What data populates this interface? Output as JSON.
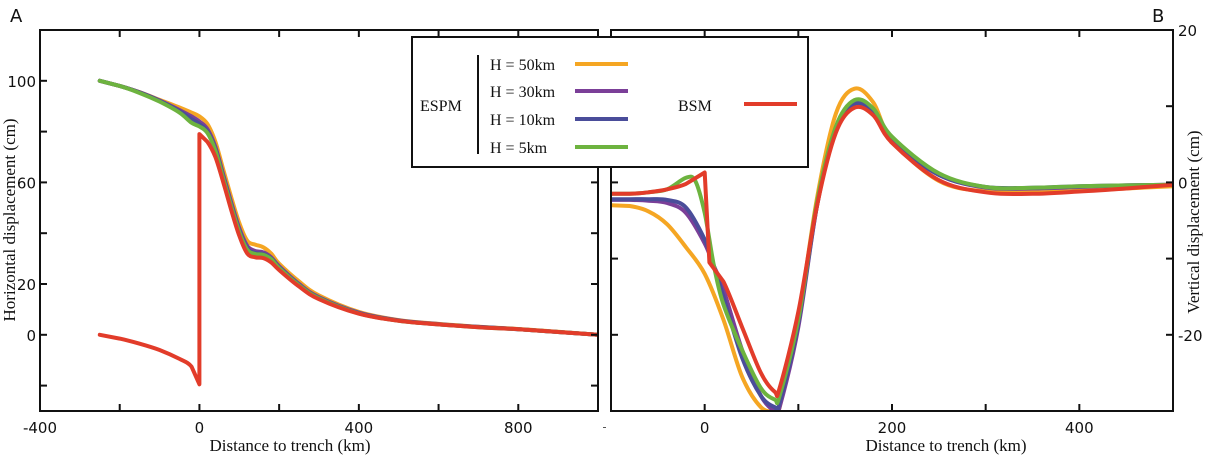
{
  "chart_data": [
    {
      "type": "line",
      "panel_label": "A",
      "xlabel": "Distance to trench (km)",
      "ylabel": "Horizontal displacement (cm)",
      "xlim": [
        -400,
        1000
      ],
      "ylim": [
        -30,
        120
      ],
      "x_ticks": [
        -400,
        -200,
        0,
        200,
        400,
        600,
        800
      ],
      "x_tick_labels": [
        "-400",
        "",
        "0",
        "",
        "400",
        "",
        "800"
      ],
      "y_ticks": [
        -20,
        0,
        20,
        40,
        60,
        80,
        100
      ],
      "y_tick_labels": [
        "",
        "0",
        "20",
        "",
        "60",
        "",
        "100"
      ],
      "y_axis_side": "left",
      "series": [
        {
          "name": "H = 50km",
          "color": "#f5a623",
          "x": [
            -250,
            -200,
            -150,
            -100,
            -50,
            -20,
            0,
            20,
            40,
            60,
            80,
            100,
            120,
            140,
            160,
            180,
            200,
            250,
            300,
            400,
            500,
            600,
            700,
            800,
            900,
            1000
          ],
          "y": [
            100,
            98,
            95.5,
            92.5,
            89.5,
            87.5,
            86,
            83,
            76,
            65,
            54,
            44,
            37,
            35.5,
            34.5,
            32,
            28,
            21,
            15.5,
            9,
            5.8,
            4.3,
            3.2,
            2.3,
            1.2,
            0
          ]
        },
        {
          "name": "H = 30km",
          "color": "#7b3f98",
          "x": [
            -250,
            -200,
            -150,
            -100,
            -50,
            -20,
            0,
            20,
            40,
            60,
            80,
            100,
            120,
            140,
            160,
            180,
            200,
            250,
            300,
            400,
            500,
            600,
            700,
            800,
            900,
            1000
          ],
          "y": [
            100,
            98,
            95.5,
            92.3,
            88.5,
            86,
            84,
            81,
            74,
            63,
            52,
            42,
            35,
            33,
            32.5,
            30.5,
            27,
            20,
            14.8,
            8.7,
            5.7,
            4.2,
            3.1,
            2.2,
            1.1,
            0
          ]
        },
        {
          "name": "H = 10km",
          "color": "#4a4d9a",
          "x": [
            -250,
            -200,
            -150,
            -100,
            -50,
            -20,
            0,
            20,
            40,
            60,
            80,
            100,
            120,
            140,
            160,
            180,
            200,
            250,
            300,
            400,
            500,
            600,
            700,
            800,
            900,
            1000
          ],
          "y": [
            100,
            98,
            95.4,
            92.1,
            88,
            85,
            83,
            80,
            73,
            62,
            51,
            41,
            34,
            32.2,
            31.8,
            30,
            26.5,
            19.6,
            14.5,
            8.5,
            5.6,
            4.1,
            3.1,
            2.2,
            1.1,
            0
          ]
        },
        {
          "name": "H = 5km",
          "color": "#6db33f",
          "x": [
            -250,
            -200,
            -150,
            -100,
            -50,
            -20,
            0,
            20,
            40,
            60,
            80,
            100,
            120,
            140,
            160,
            180,
            200,
            250,
            300,
            400,
            500,
            600,
            700,
            800,
            900,
            1000
          ],
          "y": [
            100,
            98,
            95.2,
            91.8,
            87.5,
            83.5,
            82,
            79.5,
            72.5,
            61.5,
            50.5,
            40.5,
            33.5,
            31.8,
            31.5,
            29.8,
            26.3,
            19.5,
            14.4,
            8.4,
            5.5,
            4.1,
            3.0,
            2.2,
            1.1,
            0
          ]
        },
        {
          "name": "BSM",
          "color": "#e23c2a",
          "x": [
            -250,
            -200,
            -150,
            -100,
            -50,
            -20,
            0,
            0.01,
            20,
            40,
            60,
            80,
            100,
            120,
            140,
            160,
            180,
            200,
            250,
            300,
            400,
            500,
            600,
            700,
            800,
            900,
            1000
          ],
          "y": [
            0,
            -1.5,
            -3.5,
            -6,
            -9.5,
            -12.5,
            -19.5,
            79,
            76,
            70,
            60,
            49,
            39,
            32,
            30.5,
            30.2,
            28.5,
            25.5,
            19,
            14,
            8.3,
            5.5,
            4.1,
            3.0,
            2.2,
            1.1,
            0
          ]
        }
      ]
    },
    {
      "type": "line",
      "panel_label": "B",
      "xlabel": "Distance to trench (km)",
      "ylabel": "Vertical displacement (cm)",
      "xlim": [
        -100,
        500
      ],
      "ylim": [
        -30,
        20
      ],
      "x_ticks": [
        0,
        100,
        200,
        300,
        400
      ],
      "x_tick_labels": [
        "0",
        "",
        "200",
        "",
        "400"
      ],
      "y_ticks": [
        -20,
        -10,
        0,
        10,
        20
      ],
      "y_tick_labels": [
        "-20",
        "",
        "0",
        "",
        "20"
      ],
      "y_axis_side": "right",
      "series": [
        {
          "name": "H = 50km",
          "color": "#f5a623",
          "x": [
            -100,
            -80,
            -60,
            -40,
            -20,
            0,
            20,
            40,
            60,
            75,
            80,
            100,
            120,
            140,
            160,
            180,
            200,
            250,
            300,
            350,
            400,
            450,
            500
          ],
          "y": [
            -3,
            -3.1,
            -3.8,
            -5.5,
            -8.5,
            -12,
            -18,
            -25.5,
            -29.5,
            -30,
            -29.5,
            -18,
            -2,
            9,
            12.3,
            10.5,
            5.5,
            0.2,
            -1.2,
            -1.3,
            -1.1,
            -0.8,
            -0.5
          ]
        },
        {
          "name": "H = 30km",
          "color": "#7b3f98",
          "x": [
            -100,
            -80,
            -60,
            -40,
            -20,
            0,
            10,
            20,
            40,
            60,
            75,
            80,
            100,
            120,
            140,
            160,
            180,
            200,
            250,
            300,
            350,
            400,
            450,
            500
          ],
          "y": [
            -2.3,
            -2.3,
            -2.4,
            -2.7,
            -4,
            -8,
            -11,
            -14,
            -22,
            -28,
            -30,
            -29.5,
            -19,
            -3,
            7,
            10.5,
            9.3,
            5.5,
            1.0,
            -0.7,
            -0.8,
            -0.6,
            -0.4,
            -0.3
          ]
        },
        {
          "name": "H = 10km",
          "color": "#4a4d9a",
          "x": [
            -100,
            -80,
            -60,
            -40,
            -20,
            0,
            10,
            20,
            40,
            60,
            75,
            80,
            100,
            120,
            140,
            160,
            180,
            200,
            250,
            300,
            350,
            400,
            450,
            500
          ],
          "y": [
            -2.2,
            -2.2,
            -2.2,
            -2.3,
            -3.3,
            -7.5,
            -11,
            -15,
            -23,
            -28,
            -29.5,
            -29,
            -18.5,
            -3,
            7,
            10.3,
            9.2,
            5.5,
            1.0,
            -0.6,
            -0.7,
            -0.5,
            -0.4,
            -0.3
          ]
        },
        {
          "name": "H = 5km",
          "color": "#6db33f",
          "x": [
            -100,
            -80,
            -60,
            -40,
            -20,
            -10,
            0,
            10,
            20,
            40,
            60,
            75,
            80,
            100,
            120,
            140,
            160,
            180,
            200,
            250,
            300,
            350,
            400,
            450,
            500
          ],
          "y": [
            -1.5,
            -1.5,
            -1.3,
            -0.9,
            0.6,
            0.2,
            -4,
            -11,
            -16,
            -22,
            -27,
            -28.5,
            -28,
            -18,
            -2.5,
            7.3,
            10.8,
            9.7,
            6,
            1.2,
            -0.6,
            -0.7,
            -0.5,
            -0.4,
            -0.3
          ]
        },
        {
          "name": "BSM",
          "color": "#e23c2a",
          "x": [
            -100,
            -80,
            -60,
            -40,
            -20,
            0,
            0.01,
            5,
            20,
            40,
            60,
            75,
            80,
            100,
            120,
            140,
            160,
            180,
            200,
            250,
            300,
            350,
            400,
            450,
            500
          ],
          "y": [
            -1.5,
            -1.5,
            -1.3,
            -0.9,
            -0.2,
            1.3,
            1.3,
            -10.5,
            -13,
            -19,
            -25,
            -27.5,
            -27,
            -17,
            -3,
            6.5,
            9.8,
            8.8,
            5.2,
            0.3,
            -1.3,
            -1.5,
            -1.2,
            -0.8,
            -0.3
          ]
        }
      ]
    }
  ],
  "legend": {
    "group_label": "ESPM",
    "items": [
      {
        "label": "H = 50km",
        "color": "#f5a623"
      },
      {
        "label": "H = 30km",
        "color": "#7b3f98"
      },
      {
        "label": "H = 10km",
        "color": "#4a4d9a"
      },
      {
        "label": "H = 5km",
        "color": "#6db33f"
      }
    ],
    "bsm_label": "BSM",
    "bsm_color": "#e23c2a",
    "placement": "top-center"
  }
}
